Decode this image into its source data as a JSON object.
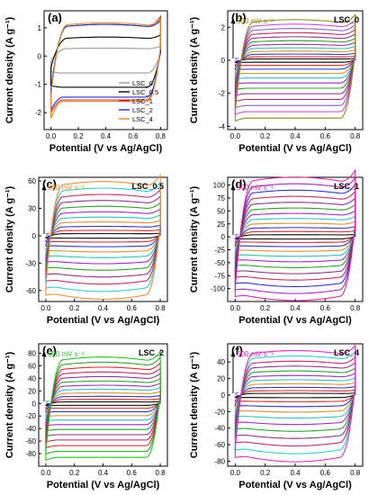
{
  "chart_data": [
    {
      "panel": "(a)",
      "type": "line",
      "ylabel": "Current density (A g⁻¹)",
      "xlabel": "Potential (V vs Ag/AgCl)",
      "xlim": [
        -0.05,
        0.85
      ],
      "ylim": [
        -2.6,
        1.6
      ],
      "xticks": [
        "0.0",
        "0.2",
        "0.4",
        "0.6",
        "0.8"
      ],
      "yticks": [
        "-2",
        "-1",
        "0",
        "1"
      ],
      "ytick_values": [
        -2,
        -1,
        0,
        1
      ],
      "legend": "bottom-right",
      "series": [
        {
          "name": "LSC_0",
          "color": "#9a9a9a",
          "up": 0.25,
          "down": -0.6,
          "start_up": -0.15,
          "start_down": -0.55,
          "end_up": 0.35,
          "end_down": 0.1
        },
        {
          "name": "LSC_0.5",
          "color": "#000000",
          "up": 0.6,
          "down": -1.1,
          "start_up": -0.4,
          "start_down": -1.05,
          "end_up": 0.75,
          "end_down": 0.15
        },
        {
          "name": "LSC_1",
          "color": "#e02020",
          "up": 1.0,
          "down": -1.55,
          "start_up": -1.3,
          "start_down": -2.0,
          "end_up": 1.4,
          "end_down": 0.3
        },
        {
          "name": "LSC_2",
          "color": "#2030d0",
          "up": 1.0,
          "down": -1.45,
          "start_up": -1.2,
          "start_down": -1.9,
          "end_up": 1.25,
          "end_down": 0.3
        },
        {
          "name": "LSC_4",
          "color": "#e08a20",
          "up": 1.05,
          "down": -1.6,
          "start_up": -1.4,
          "start_down": -2.2,
          "end_up": 1.3,
          "end_down": 0.35
        }
      ]
    },
    {
      "panel": "(b)",
      "type": "line",
      "sample": "LSC_0",
      "rate": "500 mV s⁻¹",
      "rate_color": "#8a8a10",
      "ylabel": "Current density (A g⁻¹)",
      "xlabel": "Potential (V vs Ag/AgCl)",
      "xlim": [
        -0.05,
        0.85
      ],
      "ylim": [
        -4.2,
        3.0
      ],
      "xticks": [
        "0.0",
        "0.2",
        "0.4",
        "0.6",
        "0.8"
      ],
      "yticks": [
        "-4",
        "-2",
        "0",
        "2"
      ],
      "ytick_values": [
        -4,
        -2,
        0,
        2
      ],
      "start_label": "5",
      "loop_colors": [
        "#000000",
        "#e02020",
        "#2030d0",
        "#e08a20",
        "#20c0c0",
        "#a020c0",
        "#20a020",
        "#8a2a8a",
        "#c02060",
        "#8060c0",
        "#d040d0",
        "#8a8a10"
      ],
      "max_up": 2.2,
      "max_down": -3.5,
      "down_shape": "flat"
    },
    {
      "panel": "(c)",
      "type": "line",
      "sample": "LSC_0.5",
      "rate": "500 mV s⁻¹",
      "rate_color": "#f08a20",
      "ylabel": "Current density (A g⁻¹)",
      "xlabel": "Potential (V vs Ag/AgCl)",
      "xlim": [
        -0.05,
        0.85
      ],
      "ylim": [
        -72,
        64
      ],
      "xticks": [
        "0.0",
        "0.2",
        "0.4",
        "0.6",
        "0.8"
      ],
      "yticks": [
        "-60",
        "-30",
        "0",
        "30",
        "60"
      ],
      "ytick_values": [
        -60,
        -30,
        0,
        30,
        60
      ],
      "start_label": "5",
      "loop_colors": [
        "#000000",
        "#e02020",
        "#2030d0",
        "#e08a20",
        "#20c0c0",
        "#a020c0",
        "#20a020",
        "#8a2a8a",
        "#c02060",
        "#20d0d0",
        "#f08a20"
      ],
      "max_up": 53,
      "max_down": -62,
      "down_shape": "hump"
    },
    {
      "panel": "(d)",
      "type": "line",
      "sample": "LSC_1",
      "rate": "500 mV s⁻¹",
      "rate_color": "#e020a0",
      "ylabel": "Current density (A g⁻¹)",
      "xlabel": "Potential (V vs Ag/AgCl)",
      "xlim": [
        -0.05,
        0.85
      ],
      "ylim": [
        -125,
        115
      ],
      "xticks": [
        "0.0",
        "0.2",
        "0.4",
        "0.6",
        "0.8"
      ],
      "yticks": [
        "-100",
        "-75",
        "-50",
        "-25",
        "0",
        "25",
        "50",
        "75",
        "100"
      ],
      "ytick_values": [
        -100,
        -75,
        -50,
        -25,
        0,
        25,
        50,
        75,
        100
      ],
      "start_label": "5",
      "loop_colors": [
        "#000000",
        "#e02020",
        "#2030d0",
        "#e08a20",
        "#20c0c0",
        "#a020c0",
        "#20a020",
        "#8a2a8a",
        "#c02060",
        "#2030d0",
        "#a020c0",
        "#e020a0"
      ],
      "max_up": 103,
      "max_down": -110,
      "down_shape": "hump"
    },
    {
      "panel": "(e)",
      "type": "line",
      "sample": "LSC_2",
      "rate": "500 mV s⁻¹",
      "rate_color": "#20c020",
      "ylabel": "Current density (A g⁻¹)",
      "xlabel": "Potential (V vs Ag/AgCl)",
      "xlim": [
        -0.05,
        0.85
      ],
      "ylim": [
        -100,
        95
      ],
      "xticks": [
        "0.0",
        "0.2",
        "0.4",
        "0.6",
        "0.8"
      ],
      "yticks": [
        "-80",
        "-60",
        "-40",
        "-20",
        "0",
        "20",
        "40",
        "60",
        "80"
      ],
      "ytick_values": [
        -80,
        -60,
        -40,
        -20,
        0,
        20,
        40,
        60,
        80
      ],
      "start_label": "5",
      "loop_colors": [
        "#000000",
        "#e02020",
        "#2030d0",
        "#e08a20",
        "#20c0c0",
        "#a020c0",
        "#20a020",
        "#8a2a8a",
        "#c02060",
        "#e02020",
        "#20a020",
        "#20c020"
      ],
      "max_up": 66,
      "max_down": -86,
      "down_shape": "flat"
    },
    {
      "panel": "(f)",
      "type": "line",
      "sample": "LSC_4",
      "rate": "500 mV s⁻¹",
      "rate_color": "#e020c0",
      "ylabel": "Current density (A g⁻¹)",
      "xlabel": "Potential (V vs Ag/AgCl)",
      "xlim": [
        -0.05,
        0.85
      ],
      "ylim": [
        -86,
        62
      ],
      "xticks": [
        "0.0",
        "0.2",
        "0.4",
        "0.6",
        "0.8"
      ],
      "yticks": [
        "-80",
        "-60",
        "-40",
        "-20",
        "0",
        "20",
        "40"
      ],
      "ytick_values": [
        -80,
        -60,
        -40,
        -20,
        0,
        20,
        40
      ],
      "start_label": "5",
      "loop_colors": [
        "#000000",
        "#e02020",
        "#2030d0",
        "#e08a20",
        "#20c0c0",
        "#a020c0",
        "#20a020",
        "#8a2a8a",
        "#c02060",
        "#20d0d0",
        "#e020c0"
      ],
      "max_up": 48,
      "max_down": -72,
      "down_shape": "hump"
    }
  ]
}
